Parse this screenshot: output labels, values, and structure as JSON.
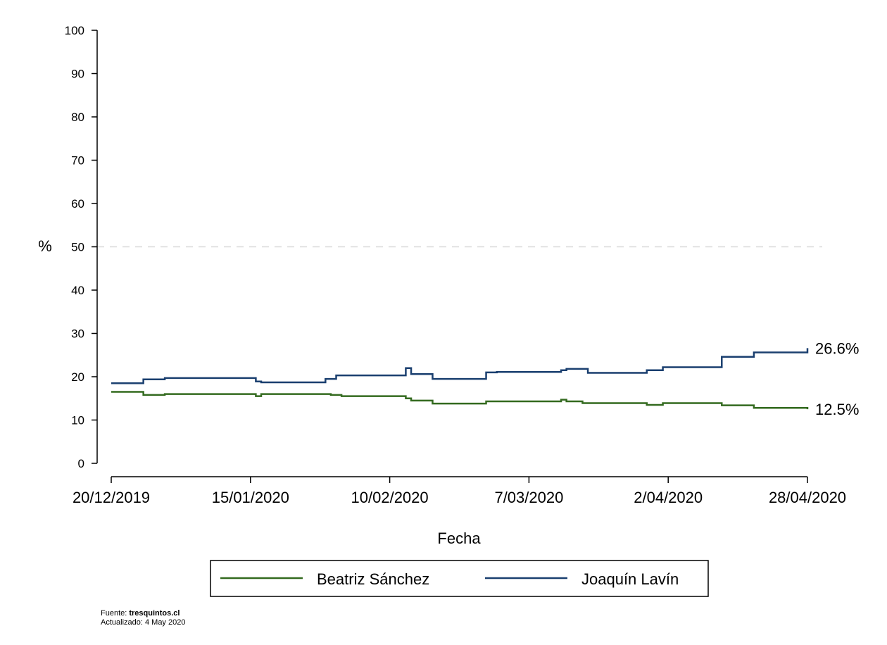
{
  "chart_data": {
    "type": "line",
    "line_shape": "step",
    "xlabel": "Fecha",
    "ylabel": "%",
    "ylim": [
      0,
      100
    ],
    "yticks": [
      0,
      10,
      20,
      30,
      40,
      50,
      60,
      70,
      80,
      90,
      100
    ],
    "xlim": [
      "2019-12-20",
      "2020-04-28"
    ],
    "xticks": [
      {
        "date": "2019-12-20",
        "label": "20/12/2019"
      },
      {
        "date": "2020-01-15",
        "label": "15/01/2020"
      },
      {
        "date": "2020-02-10",
        "label": "10/02/2020"
      },
      {
        "date": "2020-03-07",
        "label": "7/03/2020"
      },
      {
        "date": "2020-04-02",
        "label": "2/04/2020"
      },
      {
        "date": "2020-04-28",
        "label": "28/04/2020"
      }
    ],
    "reference_line": {
      "y": 50,
      "style": "dashed",
      "color": "#d9d9d9"
    },
    "grid": false,
    "legend_position": "bottom",
    "series": [
      {
        "name": "Beatriz Sánchez",
        "color": "#336a1f",
        "end_label": "12.5%",
        "points": [
          [
            "2019-12-20",
            16.5
          ],
          [
            "2019-12-26",
            15.8
          ],
          [
            "2019-12-30",
            16.0
          ],
          [
            "2020-01-16",
            15.5
          ],
          [
            "2020-01-17",
            16.0
          ],
          [
            "2020-01-30",
            15.8
          ],
          [
            "2020-02-01",
            15.5
          ],
          [
            "2020-02-13",
            15.0
          ],
          [
            "2020-02-14",
            14.5
          ],
          [
            "2020-02-18",
            13.8
          ],
          [
            "2020-02-28",
            14.3
          ],
          [
            "2020-03-13",
            14.7
          ],
          [
            "2020-03-14",
            14.3
          ],
          [
            "2020-03-17",
            13.9
          ],
          [
            "2020-03-29",
            13.5
          ],
          [
            "2020-04-01",
            13.9
          ],
          [
            "2020-04-12",
            13.4
          ],
          [
            "2020-04-18",
            12.8
          ],
          [
            "2020-04-28",
            12.5
          ]
        ]
      },
      {
        "name": "Joaquín Lavín",
        "color": "#1a3f6f",
        "end_label": "26.6%",
        "points": [
          [
            "2019-12-20",
            18.5
          ],
          [
            "2019-12-26",
            19.4
          ],
          [
            "2019-12-30",
            19.7
          ],
          [
            "2020-01-16",
            18.9
          ],
          [
            "2020-01-17",
            18.7
          ],
          [
            "2020-01-29",
            19.5
          ],
          [
            "2020-01-31",
            20.3
          ],
          [
            "2020-02-13",
            22.0
          ],
          [
            "2020-02-14",
            20.6
          ],
          [
            "2020-02-18",
            19.5
          ],
          [
            "2020-02-28",
            21.0
          ],
          [
            "2020-03-01",
            21.1
          ],
          [
            "2020-03-13",
            21.5
          ],
          [
            "2020-03-14",
            21.8
          ],
          [
            "2020-03-18",
            20.9
          ],
          [
            "2020-03-29",
            21.5
          ],
          [
            "2020-04-01",
            22.2
          ],
          [
            "2020-04-12",
            24.6
          ],
          [
            "2020-04-18",
            25.6
          ],
          [
            "2020-04-28",
            26.6
          ]
        ]
      }
    ]
  },
  "footer": {
    "source_label": "Fuente: ",
    "source_value": "tresquintos.cl",
    "updated": "Actualizado: 4 May 2020"
  }
}
